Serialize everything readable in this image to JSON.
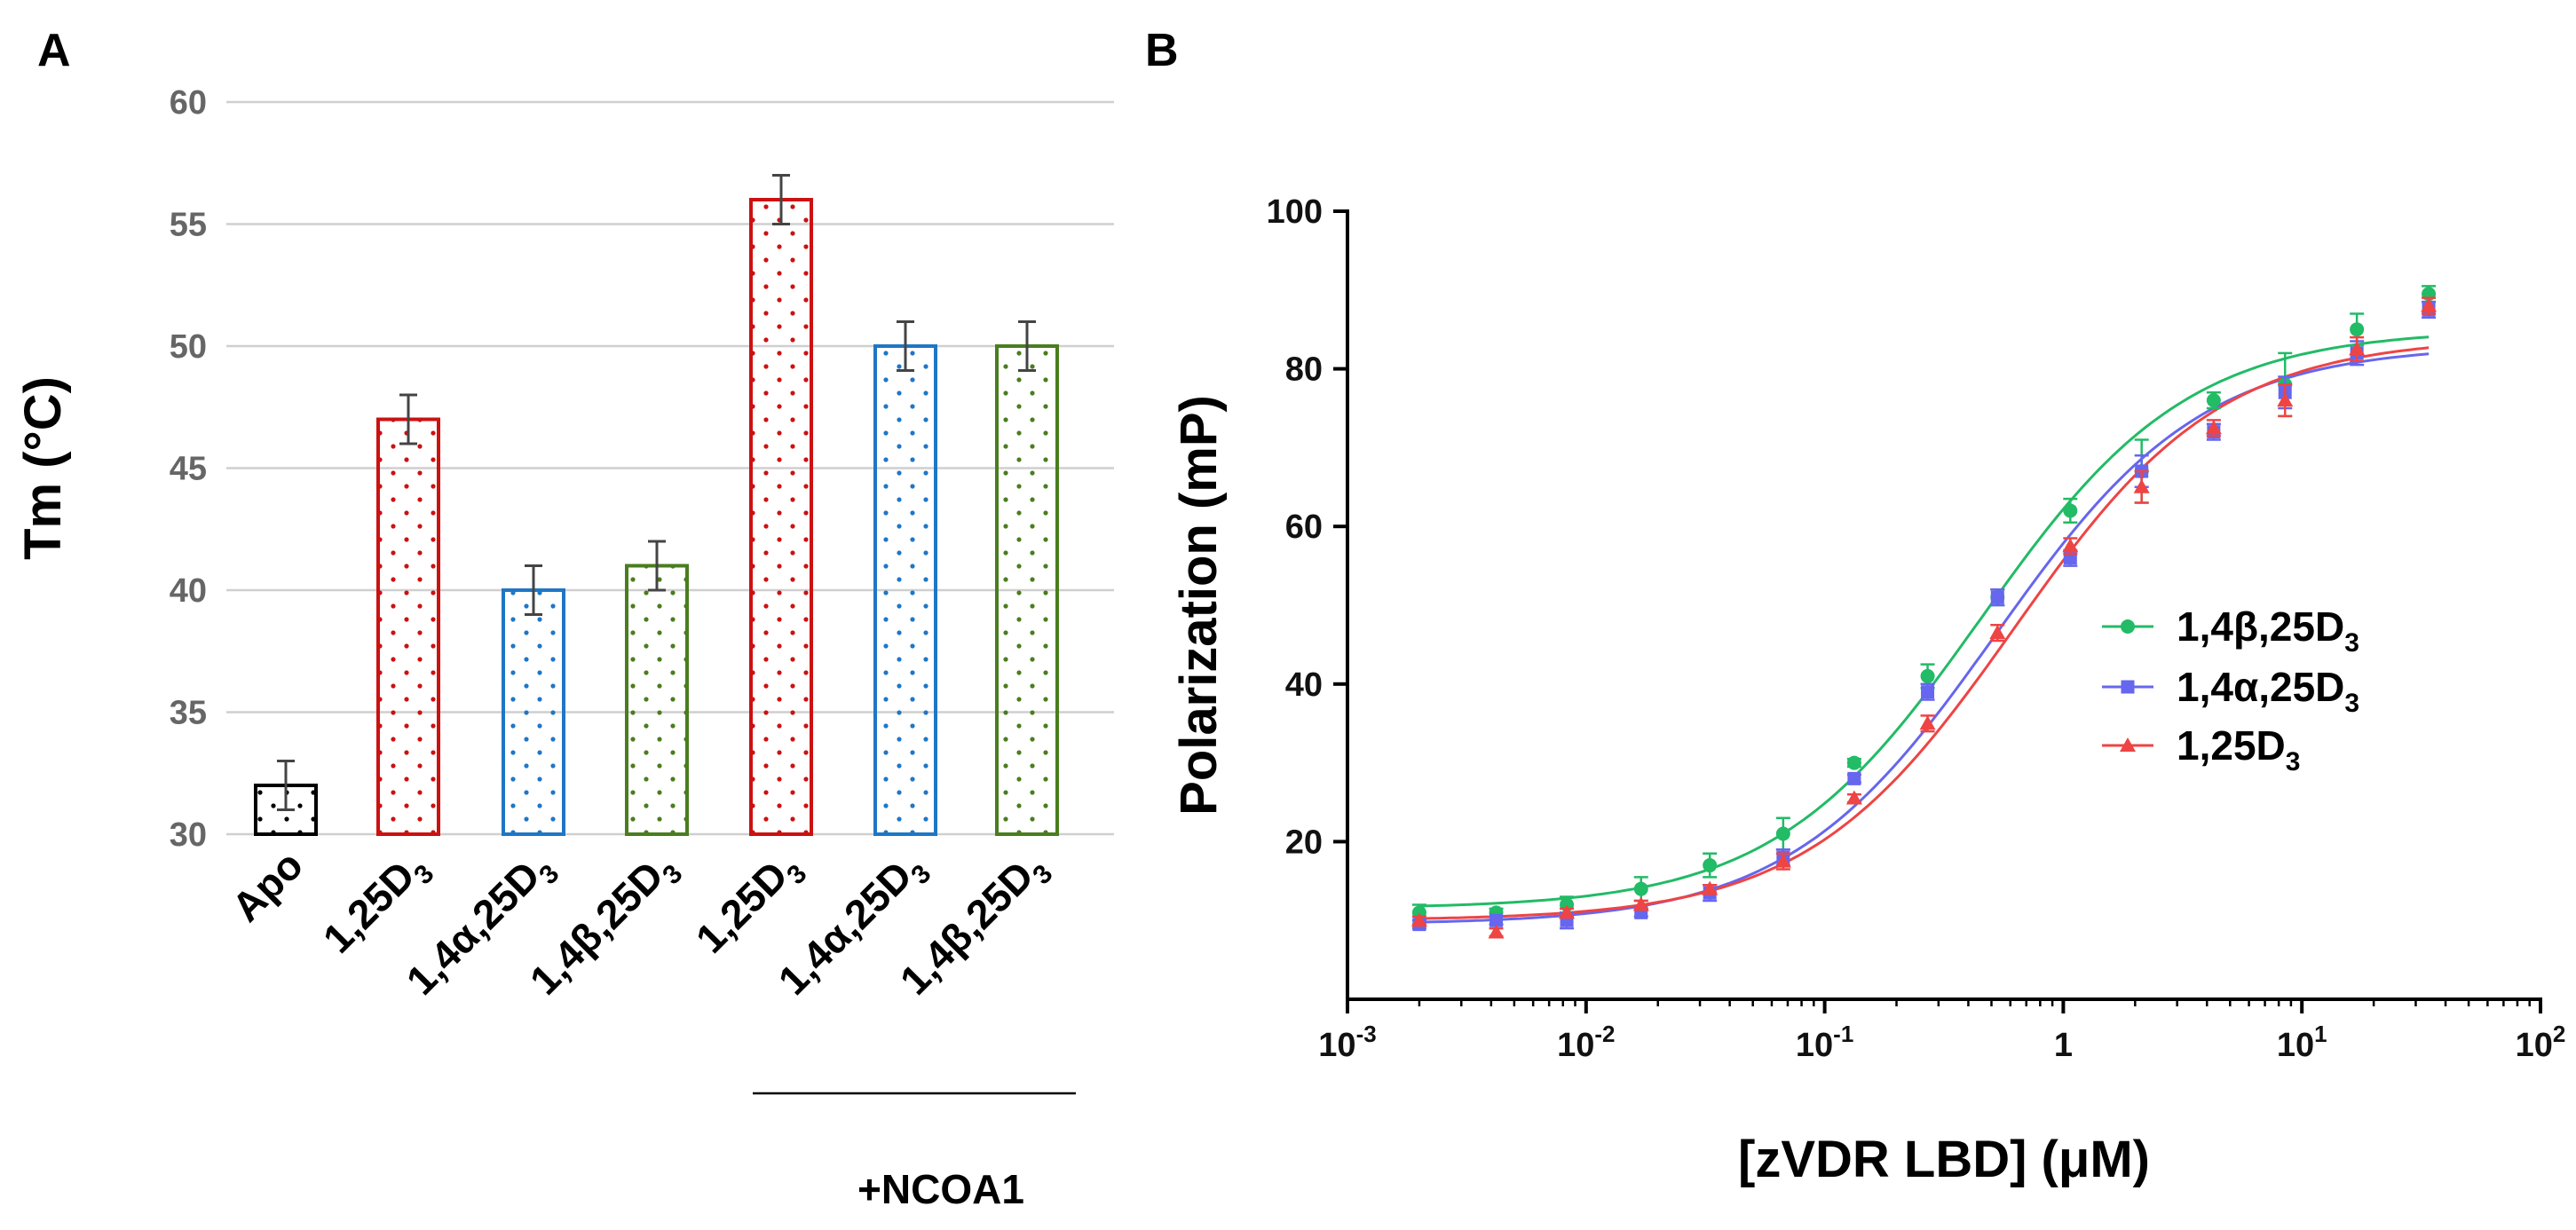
{
  "chart_data": [
    {
      "panel": "A",
      "type": "bar",
      "ylabel": "Tm (°C)",
      "ylim": [
        30,
        60
      ],
      "yticks": [
        30,
        35,
        40,
        45,
        50,
        55,
        60
      ],
      "grid": true,
      "bars": [
        {
          "label": "Apo",
          "main": "Apo",
          "sub": "",
          "after": "",
          "value": 32,
          "error": 1,
          "color": "#000000",
          "group": "none"
        },
        {
          "label": "1,25D3",
          "main": "1,25D",
          "sub": "3",
          "after": "",
          "value": 47,
          "error": 1,
          "color": "#cc1111",
          "group": "none"
        },
        {
          "label": "1,4α,25D3",
          "main": "1,4α,25D",
          "sub": "3",
          "after": "",
          "value": 40,
          "error": 1,
          "color": "#1f77c4",
          "group": "none"
        },
        {
          "label": "1,4β,25D3",
          "main": "1,4β,25D",
          "sub": "3",
          "after": "",
          "value": 41,
          "error": 1,
          "color": "#4a7d1e",
          "group": "none"
        },
        {
          "label": "1,25D3",
          "main": "1,25D",
          "sub": "3",
          "after": "",
          "value": 56,
          "error": 1,
          "color": "#cc1111",
          "group": "+NCOA1"
        },
        {
          "label": "1,4α,25D3",
          "main": "1,4α,25D",
          "sub": "3",
          "after": "",
          "value": 50,
          "error": 1,
          "color": "#1f77c4",
          "group": "+NCOA1"
        },
        {
          "label": "1,4β,25D3",
          "main": "1,4β,25D",
          "sub": "3",
          "after": "",
          "value": 50,
          "error": 1,
          "color": "#4a7d1e",
          "group": "+NCOA1"
        }
      ],
      "group_label": "+NCOA1"
    },
    {
      "panel": "B",
      "type": "scatter",
      "xlabel": "[zVDR LBD] (μM)",
      "ylabel": "Polarization (mP)",
      "xscale": "log",
      "xlim": [
        0.001,
        100
      ],
      "ylim": [
        0,
        100
      ],
      "yticks": [
        20,
        40,
        60,
        80,
        100
      ],
      "xticks": [
        {
          "base": "10",
          "exp": "-3"
        },
        {
          "base": "10",
          "exp": "-2"
        },
        {
          "base": "10",
          "exp": "-1"
        },
        {
          "base": "1",
          "exp": ""
        },
        {
          "base": "10",
          "exp": "1"
        },
        {
          "base": "10",
          "exp": "2"
        }
      ],
      "legend_position": "right",
      "series": [
        {
          "name": "1,4β,25D3",
          "legend_main": "1,4β,25D",
          "legend_sub": "3",
          "color": "#22bb66",
          "marker": "circle",
          "x": [
            0.002,
            0.0042,
            0.0083,
            0.017,
            0.033,
            0.067,
            0.133,
            0.27,
            0.53,
            1.07,
            2.13,
            4.27,
            8.5,
            17,
            34
          ],
          "y": [
            11,
            11,
            12,
            14,
            17,
            21,
            30,
            41,
            51,
            62,
            67,
            76,
            78,
            85,
            89.5
          ],
          "err": [
            1,
            0.5,
            1,
            1.5,
            1.5,
            2,
            0.5,
            1.5,
            1,
            1.5,
            4,
            1,
            4,
            2,
            1
          ],
          "fit": {
            "bottom": 11.5,
            "top": 85,
            "ec50": 0.45,
            "hill": 1
          }
        },
        {
          "name": "1,4α,25D3",
          "legend_main": "1,4α,25D",
          "legend_sub": "3",
          "color": "#6666ee",
          "marker": "square",
          "x": [
            0.002,
            0.0042,
            0.0083,
            0.017,
            0.033,
            0.067,
            0.133,
            0.27,
            0.53,
            1.07,
            2.13,
            4.27,
            8.5,
            17,
            34
          ],
          "y": [
            9.5,
            10,
            10,
            11,
            13.5,
            18,
            28,
            39,
            51,
            56,
            67,
            72,
            77,
            82,
            87.5
          ],
          "err": [
            0.5,
            0.5,
            1,
            0.5,
            1,
            1,
            0.5,
            1,
            1,
            1,
            2,
            1,
            2,
            1.5,
            1
          ],
          "fit": {
            "bottom": 9.5,
            "top": 83,
            "ec50": 0.52,
            "hill": 1
          }
        },
        {
          "name": "1,25D3",
          "legend_main": "1,25D",
          "legend_sub": "3",
          "color": "#ee4444",
          "marker": "triangle",
          "x": [
            0.002,
            0.0042,
            0.0083,
            0.017,
            0.033,
            0.067,
            0.133,
            0.27,
            0.53,
            1.07,
            2.13,
            4.27,
            8.5,
            17,
            34
          ],
          "y": [
            10,
            8.5,
            11,
            12,
            14,
            17.5,
            25.5,
            35,
            46.5,
            57.5,
            65,
            72.5,
            76,
            82.5,
            88
          ],
          "err": [
            0.5,
            0.5,
            0.5,
            0.5,
            0.5,
            1,
            0.5,
            1,
            1,
            1,
            2,
            1,
            2,
            1.5,
            1
          ],
          "fit": {
            "bottom": 10,
            "top": 84,
            "ec50": 0.62,
            "hill": 1
          }
        }
      ]
    }
  ]
}
